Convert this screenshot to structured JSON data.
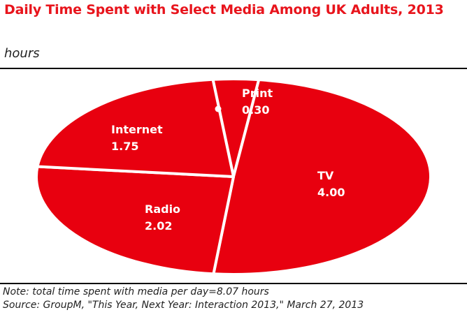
{
  "title": "Daily Time Spent with Select Media Among UK Adults, 2013",
  "subtitle": "hours",
  "colors": {
    "slice_fill": "#e8000f",
    "slice_stroke": "#ffffff",
    "label_text": "#ffffff",
    "title_text": "#e8141c"
  },
  "chart_data": {
    "type": "pie",
    "title": "Daily Time Spent with Select Media Among UK Adults, 2013",
    "unit": "hours",
    "slices": [
      {
        "label": "Print",
        "value": 0.3
      },
      {
        "label": "TV",
        "value": 4.0
      },
      {
        "label": "Radio",
        "value": 2.02
      },
      {
        "label": "Internet",
        "value": 1.75
      }
    ],
    "value_labels": [
      "0.30",
      "4.00",
      "2.02",
      "1.75"
    ]
  },
  "footer": {
    "note": "Note: total time spent with media per day=8.07 hours",
    "source": "Source: GroupM, \"This Year, Next Year: Interaction 2013,\" March 27, 2013"
  }
}
